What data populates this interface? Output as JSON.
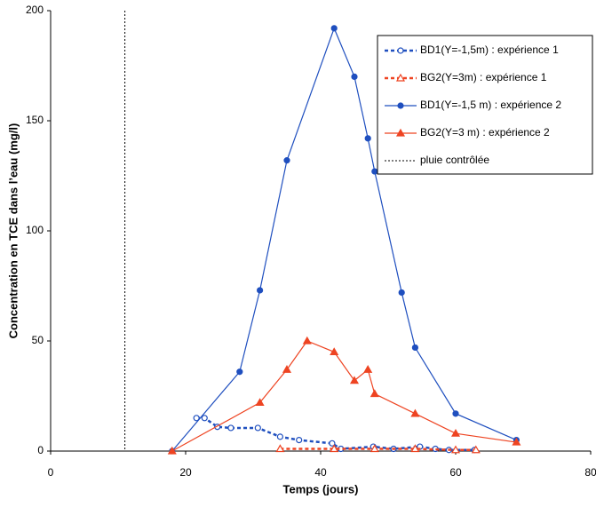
{
  "chart_data": {
    "type": "line",
    "xlabel": "Temps (jours)",
    "ylabel": "Concentration en TCE dans l’eau (mg/l)",
    "xlim": [
      0,
      80
    ],
    "xticks": [
      0,
      20,
      40,
      60,
      80
    ],
    "ylim": [
      0,
      200
    ],
    "yticks": [
      0,
      50,
      100,
      150,
      200
    ],
    "grid": false,
    "legend": "upper right",
    "series": [
      {
        "name": "BD1(Y=-1,5m) : expérience 1",
        "color": "#1f4fbf",
        "dash": true,
        "marker": "open-circle",
        "x": [
          21.6,
          22.8,
          24.7,
          26.7,
          30.7,
          34,
          36.8,
          41.7,
          43,
          47.8,
          50.8,
          54.7,
          57,
          59,
          62.8
        ],
        "values": [
          15,
          15,
          11,
          10.5,
          10.5,
          6.5,
          5,
          3.5,
          1,
          2,
          1,
          2,
          1,
          0.5,
          0.5
        ]
      },
      {
        "name": "BG2(Y=3m) : expérience 1",
        "color": "#ee4422",
        "dash": true,
        "marker": "open-triangle",
        "x": [
          34,
          42,
          48,
          54,
          60,
          63
        ],
        "values": [
          1,
          1,
          1,
          1,
          0.5,
          0.5
        ]
      },
      {
        "name": "BD1(Y=-1,5 m) : expérience 2",
        "color": "#1f4fbf",
        "dash": false,
        "marker": "circle",
        "x": [
          18,
          28,
          31,
          35,
          42,
          45,
          47,
          48,
          52,
          54,
          60,
          69
        ],
        "values": [
          0,
          36,
          73,
          132,
          192,
          170,
          142,
          127,
          72,
          47,
          17,
          5
        ]
      },
      {
        "name": "BG2(Y=3 m) : expérience 2",
        "color": "#ee4422",
        "dash": false,
        "marker": "triangle",
        "x": [
          18,
          31,
          35,
          38,
          42,
          45,
          47,
          48,
          54,
          60,
          69
        ],
        "values": [
          0,
          22,
          37,
          50,
          45,
          32,
          37,
          26,
          17,
          8,
          4
        ]
      }
    ],
    "vlines": [
      {
        "name": "pluie contrôlée",
        "x": 11,
        "color": "#000000"
      }
    ]
  }
}
